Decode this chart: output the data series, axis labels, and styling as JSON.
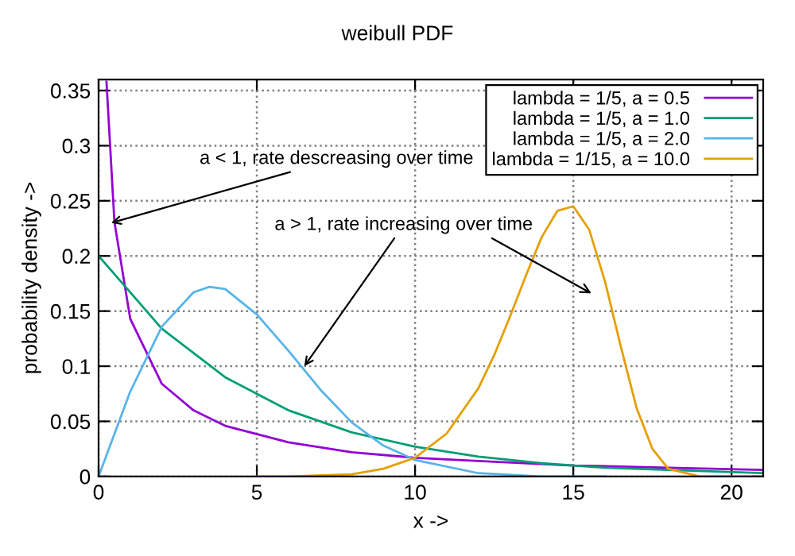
{
  "chart_data": {
    "type": "line",
    "title": "weibull PDF",
    "xlabel": "x ->",
    "ylabel": "probability density ->",
    "xlim": [
      0,
      21
    ],
    "xticks": [
      0,
      5,
      10,
      15,
      20
    ],
    "ylim": [
      0,
      0.36
    ],
    "yticks": [
      0,
      0.05,
      0.1,
      0.15,
      0.2,
      0.25,
      0.3,
      0.35
    ],
    "grid": true,
    "legend": "top right",
    "marker": "none",
    "line_style": "solid",
    "series": [
      {
        "name": "lambda = 1/5, a = 0.5",
        "color": "#9400d3",
        "x": [
          0.25,
          0.5,
          1,
          2,
          3,
          4,
          6,
          8,
          10,
          12,
          15,
          18,
          21
        ],
        "values": [
          0.358,
          0.231,
          0.143,
          0.084,
          0.06,
          0.046,
          0.031,
          0.022,
          0.017,
          0.014,
          0.01,
          0.008,
          0.006
        ]
      },
      {
        "name": "lambda = 1/5, a = 1.0",
        "color": "#009e73",
        "x": [
          0,
          2,
          4,
          6,
          8,
          10,
          12,
          14,
          16,
          18,
          21
        ],
        "values": [
          0.2,
          0.134,
          0.09,
          0.06,
          0.04,
          0.027,
          0.018,
          0.012,
          0.008,
          0.006,
          0.003
        ]
      },
      {
        "name": "lambda = 1/5, a = 2.0",
        "color": "#56b4e9",
        "x": [
          0,
          1,
          2,
          3,
          3.5,
          4,
          5,
          6,
          7,
          8,
          9,
          10,
          12,
          14,
          16
        ],
        "values": [
          0,
          0.077,
          0.136,
          0.167,
          0.172,
          0.17,
          0.147,
          0.114,
          0.079,
          0.049,
          0.028,
          0.015,
          0.003,
          0,
          0
        ]
      },
      {
        "name": "lambda = 1/15, a = 10.0",
        "color": "#e69f00",
        "x": [
          5,
          6,
          8,
          9,
          10,
          11,
          12,
          12.5,
          13,
          13.5,
          14,
          14.5,
          15,
          15.5,
          16,
          16.5,
          17,
          17.5,
          18,
          19,
          21
        ],
        "values": [
          0,
          0,
          0.002,
          0.007,
          0.017,
          0.039,
          0.08,
          0.11,
          0.145,
          0.182,
          0.217,
          0.241,
          0.245,
          0.224,
          0.177,
          0.118,
          0.062,
          0.025,
          0.007,
          0,
          0
        ]
      }
    ],
    "annotations": [
      {
        "text": "a < 1, rate descreasing over time",
        "x": 0.4,
        "y": 0.23
      },
      {
        "text": "a > 1, rate increasing over time",
        "x": 6.5,
        "y": 0.1
      }
    ]
  }
}
